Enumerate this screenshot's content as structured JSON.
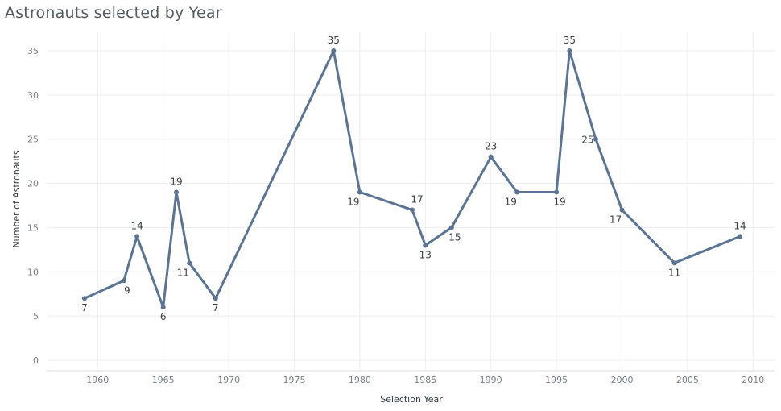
{
  "chart_data": {
    "type": "line",
    "title": "Astronauts selected by Year",
    "xlabel": "Selection Year",
    "ylabel": "Number of Astronauts",
    "xlim": [
      1955,
      2012
    ],
    "ylim": [
      0,
      37
    ],
    "x_ticks": [
      1960,
      1965,
      1970,
      1975,
      1980,
      1985,
      1990,
      1995,
      2000,
      2005,
      2010
    ],
    "y_ticks": [
      0,
      5,
      10,
      15,
      20,
      25,
      30,
      35
    ],
    "grid": true,
    "line_color": "#5b7493",
    "series": [
      {
        "points": [
          {
            "x": 1959,
            "y": 7,
            "label": "7",
            "label_pos": "below"
          },
          {
            "x": 1962,
            "y": 9,
            "label": "9",
            "label_pos": "below-right"
          },
          {
            "x": 1963,
            "y": 14,
            "label": "14",
            "label_pos": "above"
          },
          {
            "x": 1965,
            "y": 6,
            "label": "6",
            "label_pos": "below"
          },
          {
            "x": 1966,
            "y": 19,
            "label": "19",
            "label_pos": "above"
          },
          {
            "x": 1967,
            "y": 11,
            "label": "11",
            "label_pos": "below-left"
          },
          {
            "x": 1969,
            "y": 7,
            "label": "7",
            "label_pos": "below"
          },
          {
            "x": 1978,
            "y": 35,
            "label": "35",
            "label_pos": "above"
          },
          {
            "x": 1980,
            "y": 19,
            "label": "19",
            "label_pos": "below-left"
          },
          {
            "x": 1984,
            "y": 17,
            "label": "17",
            "label_pos": "above-right"
          },
          {
            "x": 1985,
            "y": 13,
            "label": "13",
            "label_pos": "below"
          },
          {
            "x": 1987,
            "y": 15,
            "label": "15",
            "label_pos": "below-right"
          },
          {
            "x": 1990,
            "y": 23,
            "label": "23",
            "label_pos": "above"
          },
          {
            "x": 1992,
            "y": 19,
            "label": "19",
            "label_pos": "below-left"
          },
          {
            "x": 1995,
            "y": 19,
            "label": "19",
            "label_pos": "below-right"
          },
          {
            "x": 1996,
            "y": 35,
            "label": "35",
            "label_pos": "above"
          },
          {
            "x": 1998,
            "y": 25,
            "label": "25",
            "label_pos": "left"
          },
          {
            "x": 2000,
            "y": 17,
            "label": "17",
            "label_pos": "below-left"
          },
          {
            "x": 2004,
            "y": 11,
            "label": "11",
            "label_pos": "below"
          },
          {
            "x": 2009,
            "y": 14,
            "label": "14",
            "label_pos": "above"
          }
        ]
      }
    ]
  }
}
